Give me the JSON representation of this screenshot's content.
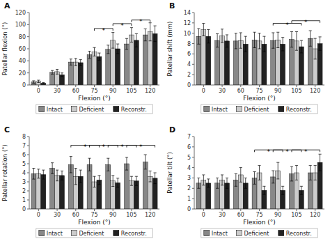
{
  "chart_data": [
    {
      "type": "bar",
      "title": "A",
      "xlabel": "Flexion (°)",
      "ylabel": "Patellar flexion (°)",
      "categories": [
        "0",
        "30",
        "60",
        "75",
        "90",
        "105",
        "120"
      ],
      "series": [
        {
          "name": "Intact",
          "color": "#888888",
          "values": [
            5,
            21,
            38,
            50,
            59,
            68,
            83
          ],
          "errors": [
            2,
            3,
            5,
            6,
            7,
            9,
            10
          ]
        },
        {
          "name": "Deficient",
          "color": "#cccccc",
          "values": [
            6,
            22,
            38,
            55,
            74,
            83,
            88
          ],
          "errors": [
            2,
            4,
            6,
            7,
            13,
            12,
            15
          ]
        },
        {
          "name": "Reconstr.",
          "color": "#222222",
          "values": [
            3,
            17,
            37,
            47,
            60,
            74,
            85
          ],
          "errors": [
            1,
            3,
            5,
            6,
            8,
            11,
            13
          ]
        }
      ],
      "ylim": [
        0,
        120
      ],
      "yticks": [
        0,
        20,
        40,
        60,
        80,
        100,
        120
      ],
      "grid": false,
      "legend": "bottom",
      "annotations": [
        {
          "text": "*",
          "x": [
            "75",
            "90"
          ],
          "series": [
            "Deficient",
            "Deficient"
          ],
          "y": 90
        },
        {
          "text": "*",
          "x": [
            "90",
            "105"
          ],
          "series": [
            "Deficient",
            "Deficient"
          ],
          "y": 98
        },
        {
          "text": "*",
          "x": [
            "105",
            "120"
          ],
          "series": [
            "Deficient",
            "Deficient"
          ],
          "y": 104
        }
      ]
    },
    {
      "type": "bar",
      "title": "B",
      "xlabel": "Flexion (°)",
      "ylabel": "Patellar shift (mm)",
      "categories": [
        "0",
        "30",
        "60",
        "75",
        "90",
        "105",
        "120"
      ],
      "series": [
        {
          "name": "Intact",
          "color": "#888888",
          "values": [
            9.4,
            8.6,
            8.5,
            8.7,
            8.6,
            8.8,
            9.0
          ],
          "errors": [
            1.5,
            1.3,
            1.5,
            1.5,
            1.5,
            1.5,
            1.5
          ]
        },
        {
          "name": "Deficient",
          "color": "#cccccc",
          "values": [
            10.7,
            9.5,
            8.6,
            8.5,
            8.7,
            8.5,
            7.0
          ],
          "errors": [
            1.2,
            1.3,
            1.5,
            1.5,
            1.5,
            1.8,
            2.0
          ]
        },
        {
          "name": "Reconstr.",
          "color": "#222222",
          "values": [
            9.4,
            8.5,
            7.9,
            7.9,
            7.9,
            7.4,
            8.0
          ],
          "errors": [
            1.3,
            1.2,
            1.5,
            1.5,
            1.3,
            1.2,
            1.3
          ]
        }
      ],
      "ylim": [
        0,
        14
      ],
      "yticks": [
        0,
        2,
        4,
        6,
        8,
        10,
        12,
        14
      ],
      "grid": false,
      "legend": "bottom",
      "annotations": [
        {
          "text": "*",
          "x": [
            "90",
            "105"
          ],
          "series": [
            "Intact",
            "Reconstr."
          ],
          "y": 11.5
        },
        {
          "text": "*",
          "x": [
            "105",
            "120"
          ],
          "series": [
            "Intact",
            "Reconstr."
          ],
          "y": 12.0
        }
      ]
    },
    {
      "type": "bar",
      "title": "C",
      "xlabel": "Flexion (°)",
      "ylabel": "Patellar rotation (°)",
      "categories": [
        "0",
        "30",
        "60",
        "75",
        "90",
        "105",
        "120"
      ],
      "series": [
        {
          "name": "Intact",
          "color": "#888888",
          "values": [
            3.9,
            4.5,
            4.9,
            4.9,
            4.9,
            5.0,
            5.2
          ],
          "errors": [
            0.6,
            0.6,
            0.9,
            0.7,
            0.7,
            0.7,
            0.8
          ]
        },
        {
          "name": "Deficient",
          "color": "#cccccc",
          "values": [
            3.9,
            3.7,
            3.6,
            3.0,
            3.1,
            3.1,
            3.6
          ],
          "errors": [
            0.5,
            0.6,
            0.9,
            0.6,
            0.6,
            0.5,
            0.6
          ]
        },
        {
          "name": "Reconstr.",
          "color": "#222222",
          "values": [
            3.8,
            3.7,
            3.6,
            3.2,
            2.9,
            3.1,
            3.4
          ],
          "errors": [
            0.5,
            0.5,
            0.7,
            0.5,
            0.5,
            0.5,
            0.6
          ]
        }
      ],
      "ylim": [
        0,
        8
      ],
      "yticks": [
        0,
        1,
        2,
        3,
        4,
        5,
        6,
        7,
        8
      ],
      "grid": false,
      "legend": "bottom",
      "annotations": [
        {
          "text": "*",
          "x": [
            "60",
            "75"
          ],
          "series": [
            "Intact",
            "Reconstr."
          ],
          "y": 6.8
        },
        {
          "text": "*",
          "x": [
            "75",
            "90"
          ],
          "series": [
            "Intact",
            "Reconstr."
          ],
          "y": 6.8
        },
        {
          "text": "*",
          "x": [
            "90",
            "105"
          ],
          "series": [
            "Intact",
            "Reconstr."
          ],
          "y": 6.8
        },
        {
          "text": "*",
          "x": [
            "105",
            "120"
          ],
          "series": [
            "Intact",
            "Reconstr."
          ],
          "y": 6.8
        }
      ]
    },
    {
      "type": "bar",
      "title": "D",
      "xlabel": "Flexion (°)",
      "ylabel": "Patellar tilt (°)",
      "categories": [
        "0",
        "30",
        "60",
        "75",
        "90",
        "105",
        "120"
      ],
      "series": [
        {
          "name": "Intact",
          "color": "#888888",
          "values": [
            2.5,
            2.5,
            2.8,
            3.0,
            3.1,
            3.4,
            3.5
          ],
          "errors": [
            0.5,
            0.5,
            0.6,
            0.6,
            0.6,
            0.7,
            0.7
          ]
        },
        {
          "name": "Deficient",
          "color": "#cccccc",
          "values": [
            2.8,
            2.8,
            3.3,
            3.5,
            3.7,
            3.5,
            3.5
          ],
          "errors": [
            0.5,
            0.5,
            0.7,
            0.7,
            0.8,
            0.7,
            0.7
          ]
        },
        {
          "name": "Reconstr.",
          "color": "#222222",
          "values": [
            2.5,
            2.5,
            2.5,
            1.8,
            1.8,
            1.8,
            4.5
          ],
          "errors": [
            0.4,
            0.5,
            0.5,
            0.4,
            0.4,
            0.4,
            0.8
          ]
        }
      ],
      "ylim": [
        0,
        7
      ],
      "yticks": [
        0,
        1,
        2,
        3,
        4,
        5,
        6,
        7
      ],
      "grid": false,
      "legend": "bottom",
      "annotations": [
        {
          "text": "*",
          "x": [
            "75",
            "90"
          ],
          "series": [
            "Intact",
            "Reconstr."
          ],
          "y": 5.5
        },
        {
          "text": "*",
          "x": [
            "90",
            "105"
          ],
          "series": [
            "Intact",
            "Reconstr."
          ],
          "y": 5.5
        },
        {
          "text": "*",
          "x": [
            "105",
            "120"
          ],
          "series": [
            "Intact",
            "Reconstr."
          ],
          "y": 5.5
        }
      ]
    }
  ]
}
